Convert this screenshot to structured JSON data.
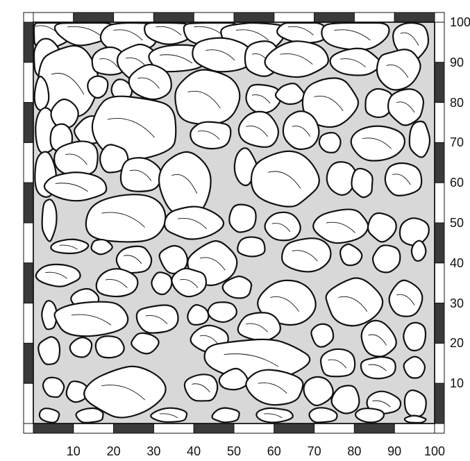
{
  "figure": {
    "type": "stone-wall-survey-drawing",
    "grid_extent": [
      0,
      100
    ],
    "scale_bar_step": 10,
    "colors": {
      "ink": "#111111",
      "paper": "#ffffff",
      "scale_dark": "#3a3a3a",
      "mortar": "#9a9a9a"
    }
  },
  "axes": {
    "x_ticks": [
      "10",
      "20",
      "30",
      "40",
      "50",
      "60",
      "70",
      "80",
      "90",
      "100"
    ],
    "y_ticks": [
      "100",
      "90",
      "80",
      "70",
      "60",
      "50",
      "40",
      "30",
      "20",
      "10"
    ]
  },
  "stones": [
    [
      4,
      98,
      7,
      5
    ],
    [
      13,
      98,
      9,
      4
    ],
    [
      24,
      97,
      8,
      5
    ],
    [
      34,
      98,
      7,
      4
    ],
    [
      44,
      98,
      8,
      4
    ],
    [
      55,
      97,
      9,
      5
    ],
    [
      67,
      98,
      7,
      4
    ],
    [
      80,
      97,
      10,
      5
    ],
    [
      94,
      96,
      5,
      6
    ],
    [
      3,
      91,
      4,
      5
    ],
    [
      9,
      85,
      9,
      10
    ],
    [
      19,
      90,
      5,
      4
    ],
    [
      26,
      90,
      6,
      5
    ],
    [
      36,
      91,
      9,
      4
    ],
    [
      47,
      92,
      8,
      5
    ],
    [
      57,
      91,
      5,
      5
    ],
    [
      66,
      91,
      9,
      5
    ],
    [
      80,
      90,
      7,
      4
    ],
    [
      91,
      88,
      6,
      6
    ],
    [
      2,
      82,
      2,
      5
    ],
    [
      16,
      84,
      3,
      3
    ],
    [
      22,
      83,
      3,
      3
    ],
    [
      29,
      85,
      6,
      5
    ],
    [
      43,
      81,
      9,
      8
    ],
    [
      57,
      81,
      5,
      4
    ],
    [
      64,
      82,
      4,
      3
    ],
    [
      74,
      80,
      8,
      7
    ],
    [
      86,
      80,
      4,
      4
    ],
    [
      93,
      79,
      5,
      5
    ],
    [
      3,
      73,
      3,
      7
    ],
    [
      8,
      77,
      4,
      4
    ],
    [
      7,
      71,
      3,
      4
    ],
    [
      14,
      73,
      4,
      4
    ],
    [
      25,
      74,
      13,
      9
    ],
    [
      44,
      72,
      6,
      4
    ],
    [
      56,
      73,
      6,
      5
    ],
    [
      67,
      73,
      5,
      5
    ],
    [
      74,
      70,
      3,
      3
    ],
    [
      86,
      70,
      8,
      5
    ],
    [
      96,
      71,
      3,
      5
    ],
    [
      3,
      62,
      3,
      7
    ],
    [
      11,
      66,
      6,
      5
    ],
    [
      20,
      66,
      4,
      4
    ],
    [
      27,
      62,
      6,
      5
    ],
    [
      38,
      60,
      7,
      9
    ],
    [
      53,
      64,
      3,
      5
    ],
    [
      63,
      61,
      9,
      8
    ],
    [
      77,
      61,
      4,
      5
    ],
    [
      82,
      60,
      3,
      4
    ],
    [
      92,
      61,
      5,
      5
    ],
    [
      10,
      59,
      9,
      4
    ],
    [
      4,
      51,
      2,
      6
    ],
    [
      23,
      51,
      12,
      7
    ],
    [
      40,
      50,
      8,
      5
    ],
    [
      52,
      51,
      4,
      4
    ],
    [
      62,
      49,
      5,
      4
    ],
    [
      77,
      49,
      8,
      5
    ],
    [
      87,
      49,
      4,
      4
    ],
    [
      95,
      48,
      4,
      4
    ],
    [
      9,
      44,
      5,
      2
    ],
    [
      17,
      44,
      3,
      2
    ],
    [
      25,
      41,
      5,
      4
    ],
    [
      35,
      41,
      4,
      4
    ],
    [
      45,
      40,
      7,
      6
    ],
    [
      54,
      44,
      4,
      3
    ],
    [
      68,
      42,
      7,
      5
    ],
    [
      79,
      42,
      3,
      3
    ],
    [
      88,
      41,
      4,
      4
    ],
    [
      96,
      43,
      2,
      3
    ],
    [
      6,
      37,
      6,
      3
    ],
    [
      13,
      31,
      4,
      3
    ],
    [
      21,
      35,
      6,
      4
    ],
    [
      32,
      35,
      3,
      3
    ],
    [
      39,
      35,
      5,
      4
    ],
    [
      51,
      34,
      4,
      3
    ],
    [
      63,
      30,
      8,
      7
    ],
    [
      80,
      30,
      8,
      7
    ],
    [
      93,
      31,
      5,
      5
    ],
    [
      4,
      27,
      2,
      4
    ],
    [
      15,
      26,
      11,
      5
    ],
    [
      31,
      26,
      6,
      4
    ],
    [
      41,
      27,
      3,
      3
    ],
    [
      47,
      28,
      4,
      3
    ],
    [
      56,
      24,
      6,
      4
    ],
    [
      72,
      22,
      3,
      3
    ],
    [
      86,
      21,
      5,
      5
    ],
    [
      95,
      22,
      3,
      4
    ],
    [
      4,
      18,
      3,
      4
    ],
    [
      12,
      19,
      3,
      3
    ],
    [
      19,
      19,
      4,
      3
    ],
    [
      28,
      20,
      4,
      3
    ],
    [
      44,
      21,
      5,
      4
    ],
    [
      55,
      16,
      15,
      6
    ],
    [
      76,
      15,
      5,
      4
    ],
    [
      86,
      14,
      5,
      3
    ],
    [
      95,
      14,
      3,
      3
    ],
    [
      5,
      9,
      3,
      3
    ],
    [
      11,
      8,
      3,
      3
    ],
    [
      23,
      8,
      12,
      7
    ],
    [
      42,
      9,
      5,
      4
    ],
    [
      50,
      11,
      4,
      3
    ],
    [
      60,
      9,
      8,
      5
    ],
    [
      71,
      8,
      4,
      4
    ],
    [
      78,
      6,
      4,
      4
    ],
    [
      87,
      5,
      5,
      3
    ],
    [
      95,
      5,
      3,
      4
    ],
    [
      4,
      2,
      3,
      2
    ],
    [
      14,
      2,
      4,
      2
    ],
    [
      34,
      2,
      5,
      2
    ],
    [
      48,
      2,
      4,
      2
    ],
    [
      60,
      2,
      5,
      2
    ],
    [
      72,
      2,
      4,
      2
    ],
    [
      84,
      2,
      4,
      2
    ],
    [
      95,
      1,
      3,
      1
    ]
  ]
}
